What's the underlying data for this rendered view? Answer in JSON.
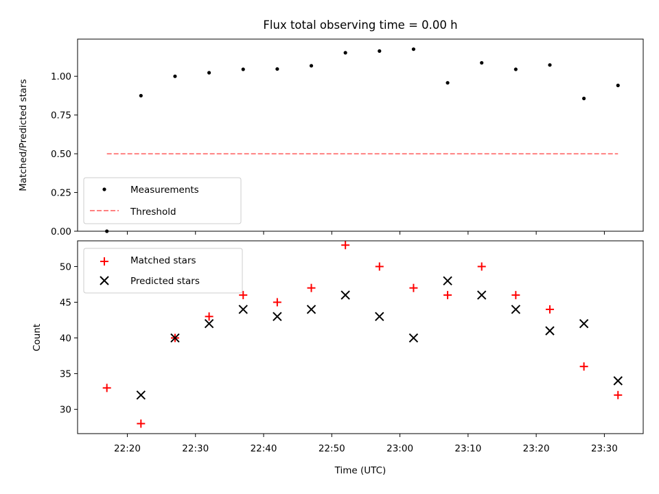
{
  "chart_data": {
    "title": "Flux total observing time = 0.00 h",
    "xlabel": "Time (UTC)",
    "x_tick_labels": [
      "22:20",
      "22:30",
      "22:40",
      "22:50",
      "23:00",
      "23:10",
      "23:20",
      "23:30"
    ],
    "x_tick_minutes": [
      20,
      30,
      40,
      50,
      60,
      70,
      80,
      90
    ],
    "x_unit": "minutes after 22:00",
    "xlim": [
      12.7,
      95.7
    ],
    "time_labels": [
      "22:17",
      "22:22",
      "22:27",
      "22:32",
      "22:37",
      "22:42",
      "22:47",
      "22:52",
      "22:57",
      "23:02",
      "23:07",
      "23:12",
      "23:17",
      "23:22",
      "23:27",
      "23:32"
    ],
    "panels": [
      {
        "type": "scatter",
        "ylabel": "Matched/Predicted stars",
        "ylim": [
          0,
          1.24
        ],
        "y_tick_values": [
          0.0,
          0.25,
          0.5,
          0.75,
          1.0
        ],
        "y_tick_labels": [
          "0.00",
          "0.25",
          "0.50",
          "0.75",
          "1.00"
        ],
        "legend_position": "lower-left",
        "series": [
          {
            "name": "Measurements",
            "kind": "points",
            "marker": "dot",
            "color": "#000000",
            "x": [
              17,
              22,
              27,
              32,
              37,
              42,
              47,
              52,
              57,
              62,
              67,
              72,
              77,
              82,
              87,
              92
            ],
            "y": [
              0.0,
              0.875,
              1.0,
              1.023,
              1.045,
              1.047,
              1.068,
              1.152,
              1.163,
              1.175,
              0.958,
              1.087,
              1.045,
              1.073,
              0.857,
              0.941
            ]
          },
          {
            "name": "Threshold",
            "kind": "line",
            "style": "dashed",
            "color": "#ff8080",
            "x": [
              17,
              92
            ],
            "y": [
              0.5,
              0.5
            ]
          }
        ]
      },
      {
        "type": "scatter",
        "ylabel": "Count",
        "ylim": [
          26.6,
          53.6
        ],
        "y_tick_values": [
          30,
          35,
          40,
          45,
          50
        ],
        "y_tick_labels": [
          "30",
          "35",
          "40",
          "45",
          "50"
        ],
        "legend_position": "top-left",
        "series": [
          {
            "name": "Matched stars",
            "kind": "points",
            "marker": "plus",
            "color": "#ff0000",
            "x": [
              17,
              22,
              27,
              32,
              37,
              42,
              47,
              52,
              57,
              62,
              67,
              72,
              77,
              82,
              87,
              92
            ],
            "y": [
              33,
              28,
              40,
              43,
              46,
              45,
              47,
              53,
              50,
              47,
              46,
              50,
              46,
              44,
              36,
              32
            ]
          },
          {
            "name": "Predicted stars",
            "kind": "points",
            "marker": "x",
            "color": "#000000",
            "x": [
              22,
              27,
              32,
              37,
              42,
              47,
              52,
              57,
              62,
              67,
              72,
              77,
              82,
              87,
              92
            ],
            "y": [
              32,
              40,
              42,
              44,
              43,
              44,
              46,
              43,
              40,
              48,
              46,
              44,
              41,
              42,
              34
            ]
          }
        ]
      }
    ]
  }
}
